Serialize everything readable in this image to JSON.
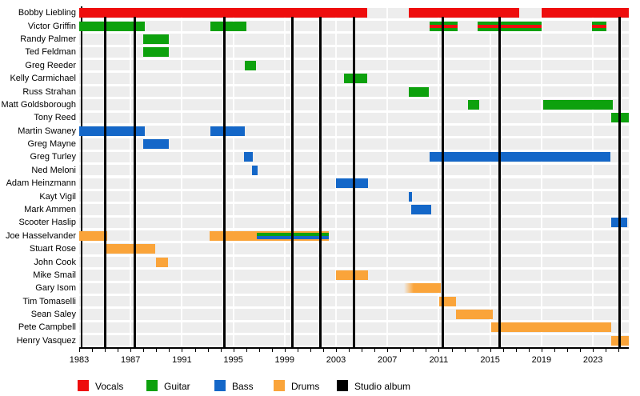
{
  "colors": {
    "vocals": "#ee0d0d",
    "guitar": "#0da10d",
    "bass": "#1467c8",
    "drums": "#faa43a",
    "studio_album": "#000000",
    "row_band": "#ededed"
  },
  "legend": {
    "items": [
      {
        "label": "Vocals",
        "role": "vocals"
      },
      {
        "label": "Guitar",
        "role": "guitar"
      },
      {
        "label": "Bass",
        "role": "bass"
      },
      {
        "label": "Drums",
        "role": "drums"
      },
      {
        "label": "Studio album",
        "role": "studio_album"
      }
    ]
  },
  "chart_data": {
    "type": "timeline",
    "description": "Band members timeline: colored bars show each member's tenure by instrument; black vertical lines mark studio albums.",
    "x_domain": [
      1983,
      2025.8
    ],
    "x_tick_labels": [
      "1983",
      "1987",
      "1991",
      "1995",
      "1999",
      "2003",
      "2007",
      "2011",
      "2015",
      "2019",
      "2023"
    ],
    "x_labeled_years": [
      1983,
      1987,
      1991,
      1995,
      1999,
      2003,
      2007,
      2011,
      2015,
      2019,
      2023
    ],
    "x_minor_tick_step": 1,
    "grid": "white vertical lines at labeled years",
    "legend_position": "bottom",
    "album_years": [
      1985.05,
      1987.35,
      1994.3,
      1999.6,
      2001.8,
      2004.4,
      2011.3,
      2015.75,
      2025.1
    ],
    "members": [
      {
        "name": "Bobby Liebling",
        "segments": [
          {
            "start": 1983,
            "end": 2005.45,
            "roles": [
              "vocals"
            ]
          },
          {
            "start": 2008.65,
            "end": 2017.3,
            "roles": [
              "vocals"
            ]
          },
          {
            "start": 2019.0,
            "end": 2025.8,
            "roles": [
              "vocals"
            ]
          }
        ]
      },
      {
        "name": "Victor Griffin",
        "segments": [
          {
            "start": 1983,
            "end": 1988.1,
            "roles": [
              "guitar"
            ]
          },
          {
            "start": 1993.2,
            "end": 1996.05,
            "roles": [
              "guitar"
            ]
          },
          {
            "start": 2010.3,
            "end": 2012.5,
            "roles": [
              "guitar",
              "vocals"
            ]
          },
          {
            "start": 2014.0,
            "end": 2019.0,
            "roles": [
              "guitar",
              "vocals"
            ]
          },
          {
            "start": 2022.95,
            "end": 2024.05,
            "roles": [
              "guitar",
              "vocals"
            ]
          }
        ]
      },
      {
        "name": "Randy Palmer",
        "segments": [
          {
            "start": 1988.0,
            "end": 1989.95,
            "roles": [
              "guitar"
            ]
          }
        ]
      },
      {
        "name": "Ted Feldman",
        "segments": [
          {
            "start": 1988.0,
            "end": 1990.0,
            "roles": [
              "guitar"
            ]
          }
        ]
      },
      {
        "name": "Greg Reeder",
        "segments": [
          {
            "start": 1995.9,
            "end": 1996.75,
            "roles": [
              "guitar"
            ]
          }
        ]
      },
      {
        "name": "Kelly Carmichael",
        "segments": [
          {
            "start": 2003.6,
            "end": 2005.45,
            "roles": [
              "guitar"
            ]
          }
        ]
      },
      {
        "name": "Russ Strahan",
        "segments": [
          {
            "start": 2008.65,
            "end": 2010.25,
            "roles": [
              "guitar"
            ]
          }
        ]
      },
      {
        "name": "Matt Goldsborough",
        "segments": [
          {
            "start": 2013.3,
            "end": 2014.15,
            "roles": [
              "guitar"
            ]
          },
          {
            "start": 2019.1,
            "end": 2024.55,
            "roles": [
              "guitar"
            ]
          }
        ]
      },
      {
        "name": "Tony Reed",
        "segments": [
          {
            "start": 2024.4,
            "end": 2025.8,
            "roles": [
              "guitar"
            ]
          }
        ]
      },
      {
        "name": "Martin Swaney",
        "segments": [
          {
            "start": 1983,
            "end": 1988.1,
            "roles": [
              "bass"
            ]
          },
          {
            "start": 1993.2,
            "end": 1995.9,
            "roles": [
              "bass"
            ]
          }
        ]
      },
      {
        "name": "Greg Mayne",
        "segments": [
          {
            "start": 1988.0,
            "end": 1990.0,
            "roles": [
              "bass"
            ]
          }
        ]
      },
      {
        "name": "Greg Turley",
        "segments": [
          {
            "start": 1995.8,
            "end": 1996.5,
            "roles": [
              "bass"
            ]
          },
          {
            "start": 2010.3,
            "end": 2024.4,
            "roles": [
              "bass"
            ]
          }
        ]
      },
      {
        "name": "Ned Meloni",
        "segments": [
          {
            "start": 1996.45,
            "end": 1996.9,
            "roles": [
              "bass"
            ]
          }
        ]
      },
      {
        "name": "Adam Heinzmann",
        "segments": [
          {
            "start": 2003.0,
            "end": 2005.5,
            "roles": [
              "bass"
            ]
          }
        ]
      },
      {
        "name": "Kayt Vigil",
        "segments": [
          {
            "start": 2008.65,
            "end": 2008.95,
            "roles": [
              "bass"
            ]
          }
        ]
      },
      {
        "name": "Mark Ammen",
        "segments": [
          {
            "start": 2008.85,
            "end": 2010.4,
            "roles": [
              "bass"
            ]
          }
        ]
      },
      {
        "name": "Scooter Haslip",
        "segments": [
          {
            "start": 2024.4,
            "end": 2025.65,
            "roles": [
              "bass"
            ]
          }
        ]
      },
      {
        "name": "Joe Hasselvander",
        "segments": [
          {
            "start": 1983,
            "end": 1985.2,
            "roles": [
              "drums"
            ]
          },
          {
            "start": 1993.15,
            "end": 1996.85,
            "roles": [
              "drums"
            ]
          },
          {
            "start": 1996.85,
            "end": 2002.45,
            "roles": [
              "drums",
              "guitar",
              "bass"
            ]
          }
        ]
      },
      {
        "name": "Stuart Rose",
        "segments": [
          {
            "start": 1985.05,
            "end": 1988.95,
            "roles": [
              "drums"
            ]
          }
        ]
      },
      {
        "name": "John Cook",
        "segments": [
          {
            "start": 1989.0,
            "end": 1989.95,
            "roles": [
              "drums"
            ]
          }
        ]
      },
      {
        "name": "Mike Smail",
        "segments": [
          {
            "start": 2003.0,
            "end": 2005.5,
            "roles": [
              "drums"
            ]
          }
        ]
      },
      {
        "name": "Gary Isom",
        "segments": [
          {
            "start": 2008.3,
            "end": 2011.15,
            "roles": [
              "drums"
            ],
            "fade_left": true
          }
        ]
      },
      {
        "name": "Tim Tomaselli",
        "segments": [
          {
            "start": 2011.05,
            "end": 2012.35,
            "roles": [
              "drums"
            ]
          }
        ]
      },
      {
        "name": "Sean Saley",
        "segments": [
          {
            "start": 2012.35,
            "end": 2015.2,
            "roles": [
              "drums"
            ]
          }
        ]
      },
      {
        "name": "Pete Campbell",
        "segments": [
          {
            "start": 2015.1,
            "end": 2024.45,
            "roles": [
              "drums"
            ]
          }
        ]
      },
      {
        "name": "Henry Vasquez",
        "segments": [
          {
            "start": 2024.4,
            "end": 2025.8,
            "roles": [
              "drums"
            ]
          }
        ]
      }
    ]
  }
}
